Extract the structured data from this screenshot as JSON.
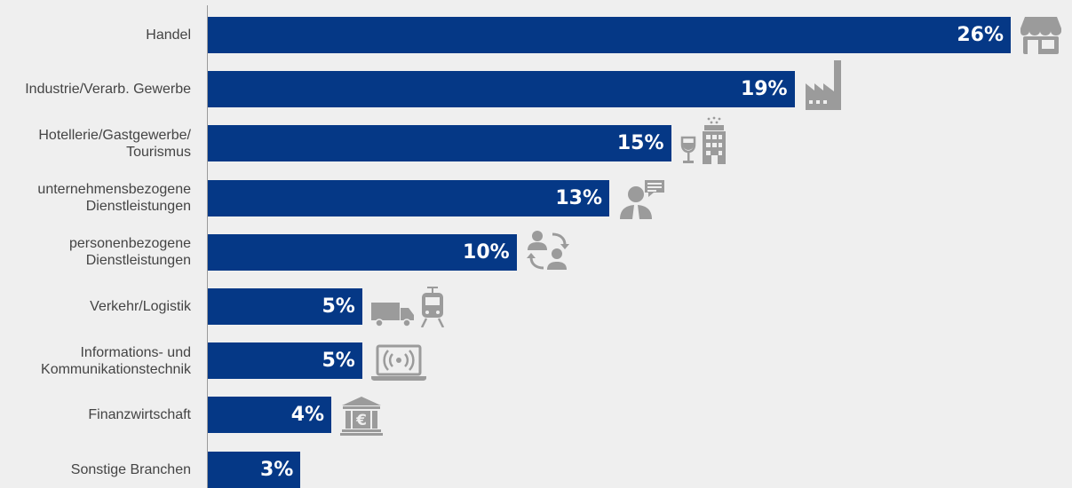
{
  "chart_data": {
    "type": "bar",
    "orientation": "horizontal",
    "categories": [
      "Handel",
      "Industrie/Verarb. Gewerbe",
      "Hotellerie/Gastgewerbe/\nTourismus",
      "unternehmensbezogene\nDienstleistungen",
      "personenbezogene\nDienstleistungen",
      "Verkehr/Logistik",
      "Informations- und\nKommunikationstechnik",
      "Finanzwirtschaft",
      "Sonstige Branchen"
    ],
    "values": [
      26,
      19,
      15,
      13,
      10,
      5,
      5,
      4,
      3
    ],
    "value_labels": [
      "26%",
      "19%",
      "15%",
      "13%",
      "10%",
      "5%",
      "5%",
      "4%",
      "3%"
    ],
    "unit": "%",
    "xlim": [
      0,
      26
    ],
    "grid": false,
    "legend": "none",
    "bar_color": "#053886",
    "icon_color": "#9b9b9b",
    "icons": [
      [
        "shop-icon"
      ],
      [
        "factory-icon"
      ],
      [
        "wine-glass-icon",
        "hotel-icon"
      ],
      [
        "business-person-icon"
      ],
      [
        "people-exchange-icon"
      ],
      [
        "truck-icon",
        "train-icon"
      ],
      [
        "laptop-wireless-icon"
      ],
      [
        "bank-euro-icon"
      ],
      []
    ]
  }
}
